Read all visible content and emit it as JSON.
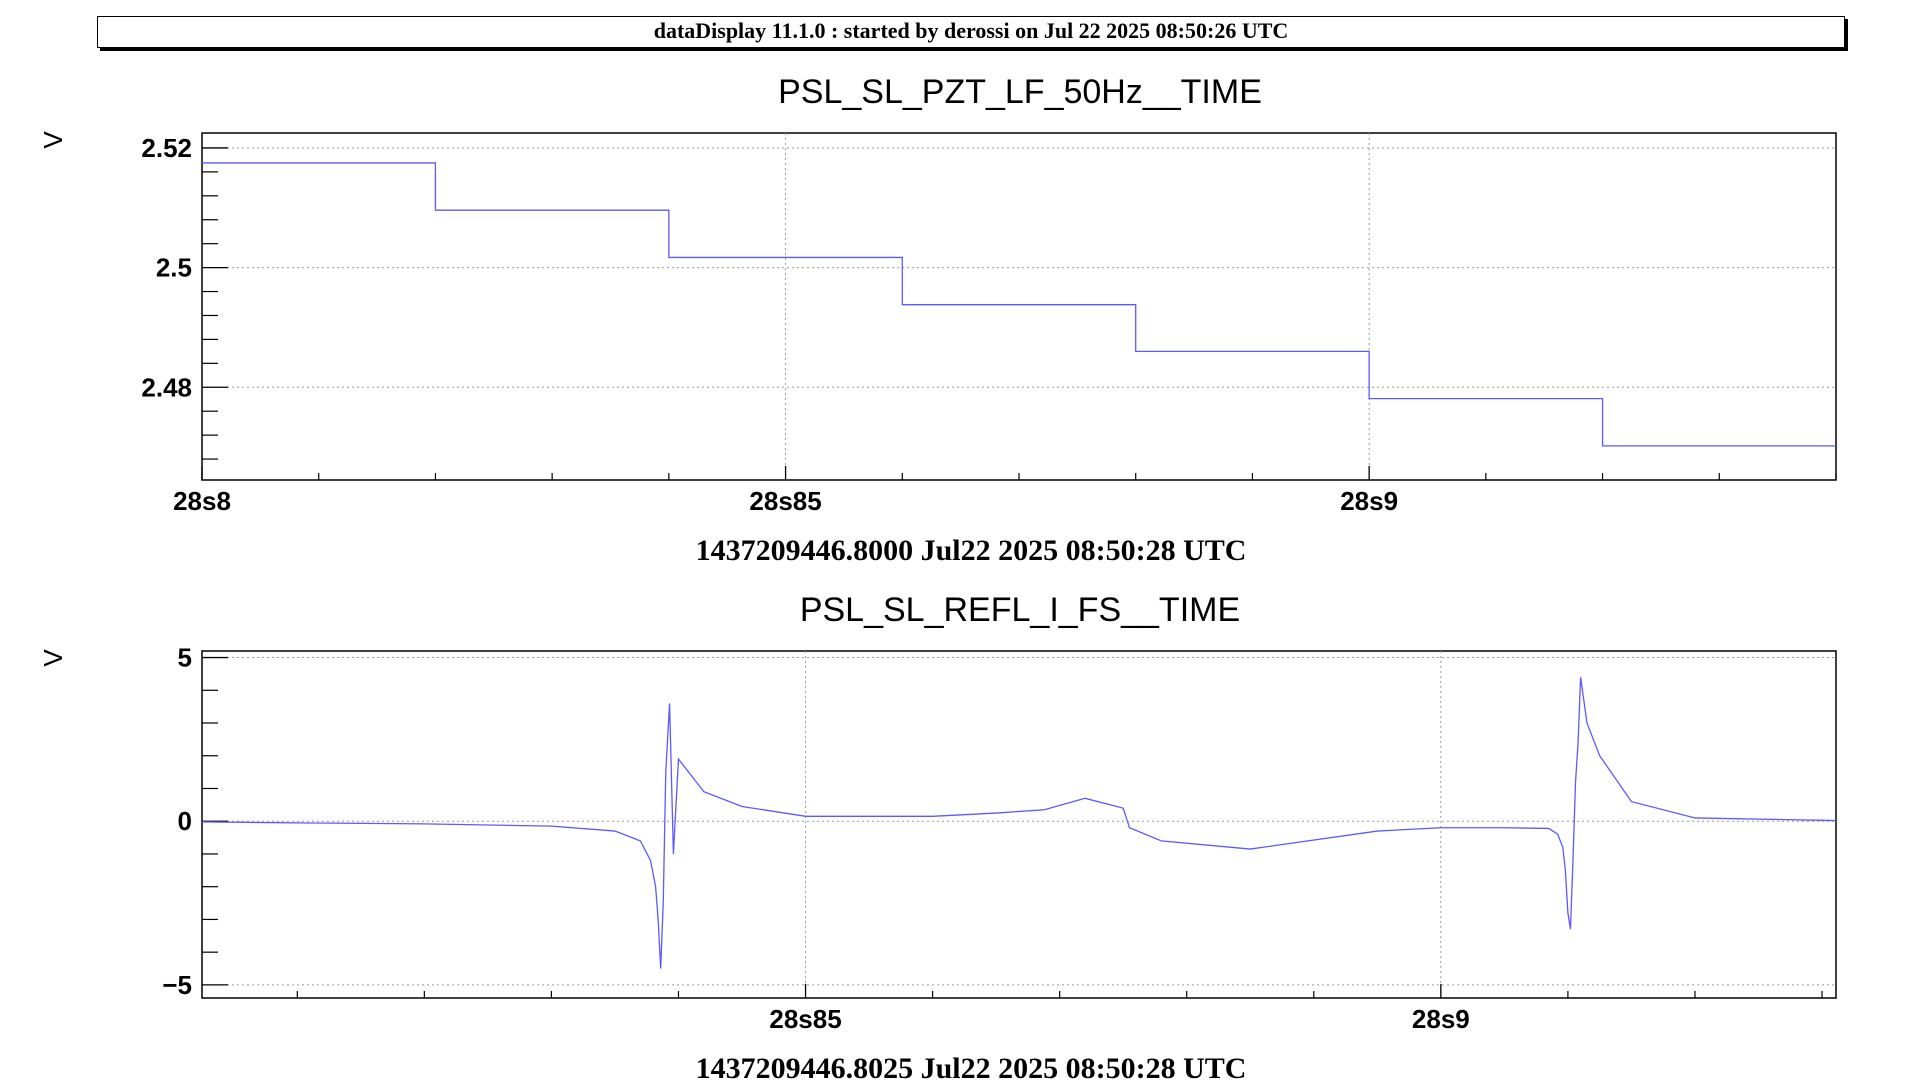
{
  "header": {
    "text": "dataDisplay 11.1.0 : started by derossi on Jul 22 2025 08:50:26 UTC"
  },
  "colors": {
    "series": "#5a5aff",
    "grid": "#9a9a9a",
    "axis": "#000000"
  },
  "chart_data": [
    {
      "type": "line",
      "title": "PSL_SL_PZT_LF_50Hz__TIME",
      "ylabel": "V",
      "xlabel": "1437209446.8000 Jul22 2025 08:50:28 UTC",
      "xlim": [
        28.8,
        28.94
      ],
      "ylim": [
        2.4645,
        2.5225
      ],
      "yticks": [
        {
          "value": 2.48,
          "label": "2.48"
        },
        {
          "value": 2.5,
          "label": "2.5"
        },
        {
          "value": 2.52,
          "label": "2.52"
        }
      ],
      "xticks": [
        {
          "value": 28.8,
          "label": "28s8"
        },
        {
          "value": 28.85,
          "label": "28s85"
        },
        {
          "value": 28.9,
          "label": "28s9"
        }
      ],
      "grid": true,
      "step": true,
      "series": [
        {
          "x": [
            28.8,
            28.82,
            28.84,
            28.86,
            28.88,
            28.9,
            28.92,
            28.94
          ],
          "y": [
            2.5175,
            2.5096,
            2.5017,
            2.4938,
            2.486,
            2.4781,
            2.4702,
            2.4702
          ]
        }
      ]
    },
    {
      "type": "line",
      "title": "PSL_SL_REFL_I_FS__TIME",
      "ylabel": "V",
      "xlabel": "1437209446.8025 Jul22 2025 08:50:28 UTC",
      "xlim": [
        28.8025,
        28.9311
      ],
      "ylim": [
        -5.4,
        5.2
      ],
      "yticks": [
        {
          "value": -5,
          "label": "−5"
        },
        {
          "value": 0,
          "label": "0"
        },
        {
          "value": 5,
          "label": "5"
        }
      ],
      "xticks": [
        {
          "value": 28.85,
          "label": "28s85"
        },
        {
          "value": 28.9,
          "label": "28s9"
        }
      ],
      "grid": true,
      "step": false,
      "series": [
        {
          "x": [
            28.8025,
            28.81,
            28.82,
            28.83,
            28.835,
            28.837,
            28.8378,
            28.8382,
            28.8384,
            28.8386,
            28.8388,
            28.839,
            28.8393,
            28.8396,
            28.84,
            28.842,
            28.845,
            28.85,
            28.86,
            28.865,
            28.8688,
            28.872,
            28.875,
            28.8755,
            28.878,
            28.885,
            28.895,
            28.9,
            28.905,
            28.9085,
            28.9092,
            28.9096,
            28.9098,
            28.91,
            28.9102,
            28.9104,
            28.9106,
            28.9108,
            28.911,
            28.9115,
            28.9125,
            28.915,
            28.92,
            28.9311
          ],
          "y": [
            -0.02,
            -0.05,
            -0.08,
            -0.15,
            -0.3,
            -0.6,
            -1.2,
            -2.0,
            -3.0,
            -4.5,
            -2.5,
            1.5,
            3.6,
            -1.0,
            1.9,
            0.9,
            0.45,
            0.15,
            0.15,
            0.25,
            0.35,
            0.7,
            0.4,
            -0.2,
            -0.6,
            -0.85,
            -0.3,
            -0.2,
            -0.2,
            -0.22,
            -0.4,
            -0.8,
            -1.5,
            -2.8,
            -3.3,
            -1.2,
            1.2,
            2.4,
            4.4,
            3.0,
            2.0,
            0.6,
            0.1,
            0.02
          ]
        }
      ]
    }
  ]
}
